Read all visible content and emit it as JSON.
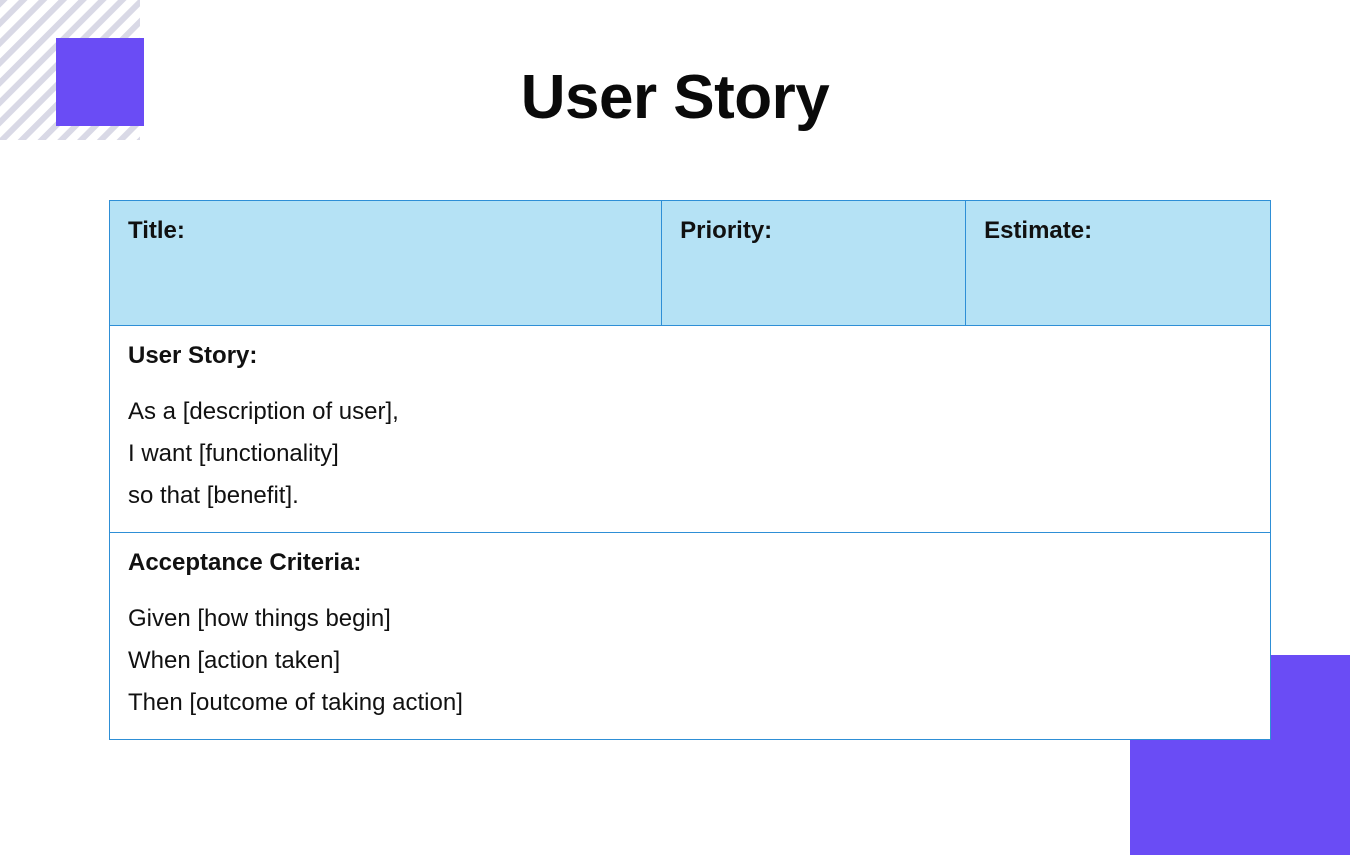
{
  "page": {
    "title": "User Story",
    "title_fontsize": 62,
    "title_color": "#0a0a0a",
    "background_color": "#ffffff"
  },
  "decor": {
    "square_color": "#6a4cf5",
    "hatch_color": "#d9d9e6"
  },
  "card": {
    "border_color": "#2e8fd6",
    "header_bg": "#b5e2f5",
    "body_bg": "#ffffff",
    "label_fontsize": 24,
    "body_fontsize": 24,
    "text_color": "#111111",
    "header_columns": [
      {
        "label": "Title:",
        "width_pct": 47.6
      },
      {
        "label": "Priority:",
        "width_pct": 26.2
      },
      {
        "label": "Estimate:",
        "width_pct": 26.2
      }
    ],
    "sections": [
      {
        "label": "User Story:",
        "lines": [
          "As a [description of user],",
          "I want [functionality]",
          "so that [benefit]."
        ]
      },
      {
        "label": "Acceptance Criteria:",
        "lines": [
          "Given [how things begin]",
          "When [action taken]",
          "Then [outcome of taking action]"
        ]
      }
    ]
  }
}
